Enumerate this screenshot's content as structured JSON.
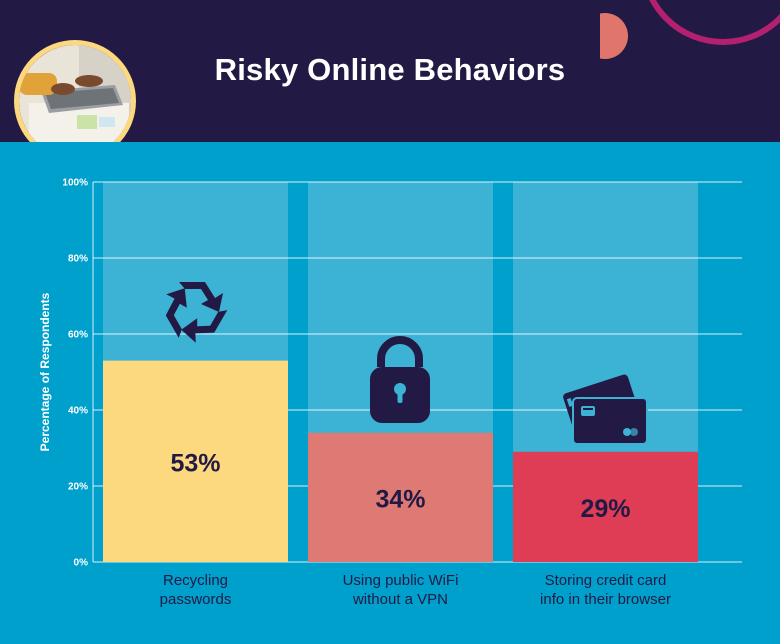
{
  "header": {
    "title": "Risky Online Behaviors",
    "photo_icon": "laptop-typing-photo",
    "background": "#221a45"
  },
  "chart_data": {
    "type": "bar",
    "title": "Risky Online Behaviors",
    "xlabel": "",
    "ylabel": "Percentage of Respondents",
    "ylim": [
      0,
      100
    ],
    "y_ticks": [
      "0%",
      "20%",
      "40%",
      "60%",
      "80%",
      "100%"
    ],
    "grid": true,
    "categories": [
      [
        "Recycling",
        "passwords"
      ],
      [
        "Using public WiFi",
        "without a VPN"
      ],
      [
        "Storing credit card",
        "info in their browser"
      ]
    ],
    "values": [
      53,
      34,
      29
    ],
    "value_labels": [
      "53%",
      "34%",
      "29%"
    ],
    "bar_colors": [
      "#fcd87e",
      "#de7a73",
      "#df3c56"
    ],
    "icons": [
      "recycle-icon",
      "lock-icon",
      "credit-card-icon"
    ]
  },
  "colors": {
    "background": "#00a0cc",
    "column_background": "#3cb2d4",
    "dark": "#221a45",
    "accent": "#e0756c",
    "ring": "#b3206f"
  }
}
